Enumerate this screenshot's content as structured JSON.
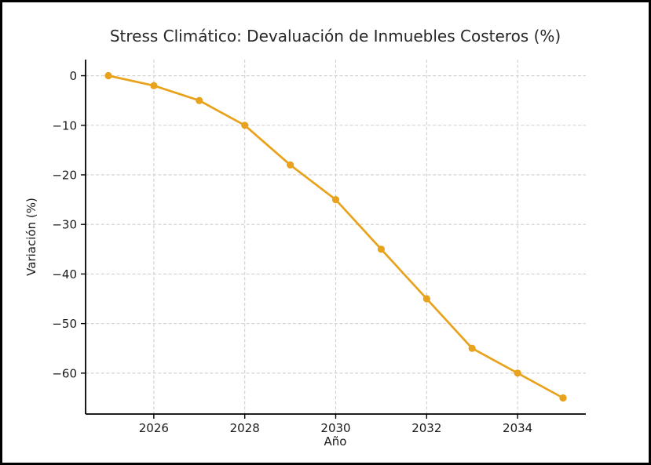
{
  "chart_data": {
    "type": "line",
    "title": "Stress Climático: Devaluación de Inmuebles Costeros (%)",
    "xlabel": "Año",
    "ylabel": "Variación (%)",
    "x": [
      2025,
      2026,
      2027,
      2028,
      2029,
      2030,
      2031,
      2032,
      2033,
      2034,
      2035
    ],
    "values": [
      0,
      -2,
      -5,
      -10,
      -18,
      -25,
      -35,
      -45,
      -55,
      -60,
      -65
    ],
    "xticks": [
      2026,
      2028,
      2030,
      2032,
      2034
    ],
    "yticks": [
      0,
      -10,
      -20,
      -30,
      -40,
      -50,
      -60
    ],
    "xlim": [
      2024.5,
      2035.5
    ],
    "ylim": [
      -68.25,
      3.25
    ],
    "grid": true,
    "legend": "none",
    "colors": {
      "line": "#E8A21B",
      "marker": "#E8A21B",
      "grid": "#cfcfcf",
      "spine": "#000000",
      "title_text": "#262626",
      "tick_text": "#1a1a1a",
      "background": "#ffffff",
      "figure_border": "#000000"
    }
  }
}
